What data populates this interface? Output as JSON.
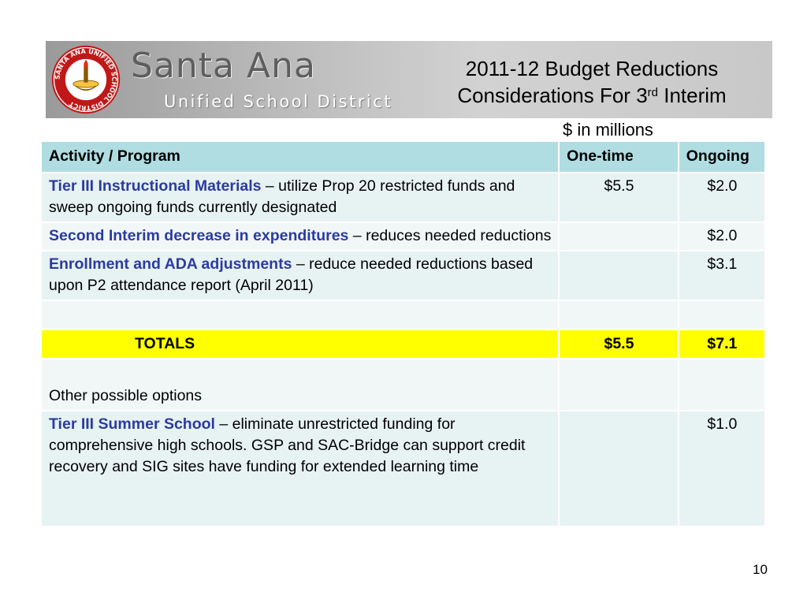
{
  "header": {
    "brand_name": "Santa Ana",
    "brand_subtitle": "Unified School District",
    "seal_text": "SANTA ANA UNIFIED SCHOOL DISTRICT",
    "title_line1": "2011-12 Budget Reductions",
    "title_line2_prefix": "Considerations For 3",
    "title_line2_sup": "rd",
    "title_line2_suffix": " Interim"
  },
  "units_label": "$ in millions",
  "table": {
    "headers": {
      "activity": "Activity / Program",
      "one_time": "One-time",
      "ongoing": "Ongoing"
    },
    "rows": [
      {
        "highlight": "Tier III Instructional Materials",
        "text": " – utilize Prop 20 restricted funds and sweep ongoing funds currently designated",
        "one_time": "$5.5",
        "ongoing": "$2.0"
      },
      {
        "highlight": "Second Interim decrease in expenditures",
        "text": " – reduces needed reductions",
        "one_time": "",
        "ongoing": "$2.0"
      },
      {
        "highlight": "Enrollment and ADA adjustments",
        "text": " – reduce needed reductions based upon P2 attendance report (April 2011)",
        "one_time": "",
        "ongoing": "$3.1"
      }
    ],
    "totals": {
      "label": "TOTALS",
      "one_time": "$5.5",
      "ongoing": "$7.1"
    },
    "other_options_label": "Other possible options",
    "other_rows": [
      {
        "highlight": "Tier III Summer School",
        "text": " – eliminate unrestricted funding for comprehensive high schools.  GSP and SAC-Bridge can support credit recovery and SIG sites have funding for extended learning time",
        "one_time": "",
        "ongoing": "$1.0"
      }
    ]
  },
  "page_number": "10",
  "colors": {
    "header_row": "#b0dde2",
    "cell": "#e7f2f3",
    "totals": "#ffff00",
    "highlight_text": "#2b3ba0"
  }
}
